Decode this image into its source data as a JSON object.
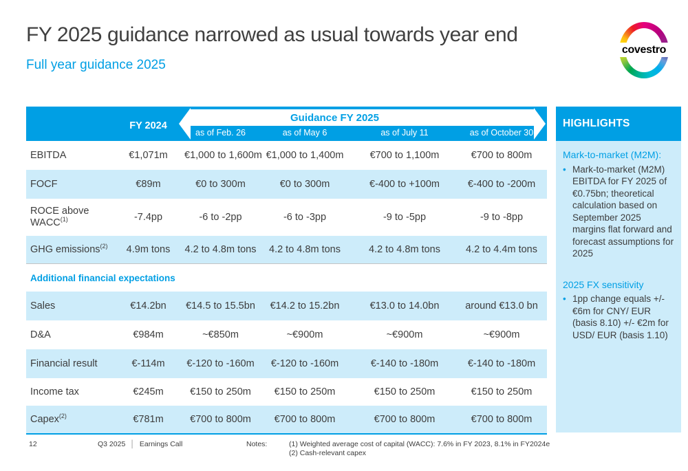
{
  "slide": {
    "title": "FY 2025 guidance narrowed as usual towards year end",
    "subtitle": "Full year guidance 2025"
  },
  "logo": {
    "wordmark": "covestro"
  },
  "colors": {
    "accent_blue": "#009fe4",
    "row_shade_blue": "#cdecfa",
    "title_gray": "#404040"
  },
  "table": {
    "header": {
      "fy_col": "FY 2024",
      "guidance_label": "Guidance FY 2025",
      "as_of": [
        "as of Feb. 26",
        "as of May 6",
        "as of July 11",
        "as of October 30"
      ]
    },
    "rows": [
      {
        "key": "ebitda",
        "label": "EBITDA",
        "sup": "",
        "shade": false,
        "values": [
          "€1,071m",
          "€1,000 to 1,600m",
          "€1,000 to 1,400m",
          "€700 to 1,100m",
          "€700 to 800m"
        ]
      },
      {
        "key": "focf",
        "label": "FOCF",
        "sup": "",
        "shade": true,
        "values": [
          "€89m",
          "€0 to 300m",
          "€0 to 300m",
          "€-400 to +100m",
          "€-400 to -200m"
        ]
      },
      {
        "key": "roce",
        "label": "ROCE above WACC",
        "sup": "(1)",
        "shade": false,
        "values": [
          "-7.4pp",
          "-6 to -2pp",
          "-6 to -3pp",
          "-9 to -5pp",
          "-9 to -8pp"
        ]
      },
      {
        "key": "ghg",
        "label": "GHG emissions",
        "sup": "(2)",
        "shade": true,
        "values": [
          "4.9m tons",
          "4.2 to 4.8m tons",
          "4.2 to 4.8m tons",
          "4.2 to 4.8m tons",
          "4.2 to 4.4m tons"
        ]
      },
      {
        "type": "section",
        "key": "section",
        "label": "Additional financial expectations"
      },
      {
        "key": "sales",
        "label": "Sales",
        "sup": "",
        "shade": true,
        "values": [
          "€14.2bn",
          "€14.5 to 15.5bn",
          "€14.2 to 15.2bn",
          "€13.0 to 14.0bn",
          "around €13.0 bn"
        ]
      },
      {
        "key": "dna",
        "label": "D&A",
        "sup": "",
        "shade": false,
        "values": [
          "€984m",
          "~€850m",
          "~€900m",
          "~€900m",
          "~€900m"
        ]
      },
      {
        "key": "fin",
        "label": "Financial result",
        "sup": "",
        "shade": true,
        "values": [
          "€-114m",
          "€-120 to -160m",
          "€-120 to -160m",
          "€-140 to -180m",
          "€-140 to -180m"
        ]
      },
      {
        "key": "inc",
        "label": "Income tax",
        "sup": "",
        "shade": false,
        "values": [
          "€245m",
          "€150 to 250m",
          "€150 to 250m",
          "€150 to 250m",
          "€150 to 250m"
        ]
      },
      {
        "key": "capex",
        "label": "Capex",
        "sup": "(2)",
        "shade": true,
        "values": [
          "€781m",
          "€700 to 800m",
          "€700 to 800m",
          "€700 to 800m",
          "€700 to 800m"
        ]
      }
    ]
  },
  "highlights": {
    "title": "HIGHLIGHTS",
    "sections": [
      {
        "heading": "Mark-to-market (M2M):",
        "bullets": [
          "Mark-to-market (M2M) EBITDA for FY 2025 of €0.75bn; theoretical calculation based on September 2025 margins flat forward and forecast assumptions for 2025"
        ]
      },
      {
        "heading": "2025 FX sensitivity",
        "bullets": [
          "1pp change equals +/- €6m for CNY/ EUR (basis 8.10) +/- €2m for USD/ EUR (basis 1.10)"
        ]
      }
    ]
  },
  "footer": {
    "page_number": "12",
    "event_period": "Q3 2025",
    "event_separator": "│",
    "event_name": "Earnings Call",
    "notes_label": "Notes:",
    "notes": [
      "(1) Weighted average cost of capital (WACC): 7.6% in FY 2023, 8.1% in FY2024e",
      "(2) Cash-relevant capex"
    ]
  }
}
